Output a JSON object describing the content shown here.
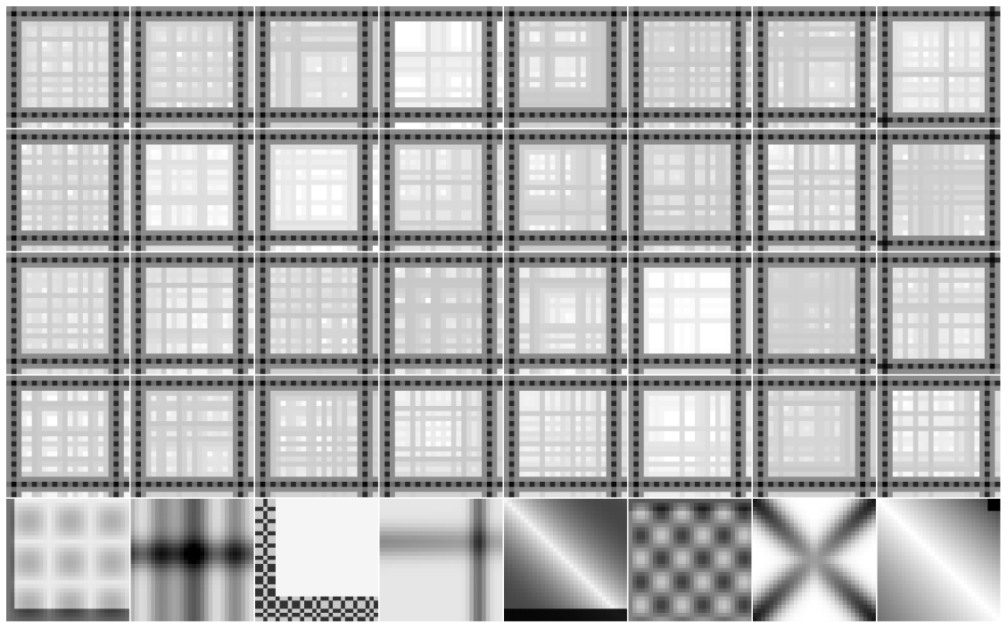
{
  "figure": {
    "grid_rows": 5,
    "grid_cols": 8,
    "background": "#ffffff",
    "colormap": "grayscale"
  },
  "tiles": {
    "row_styles": [
      "lattice",
      "lattice",
      "lattice",
      "lattice",
      "smooth"
    ],
    "faint_tiles": [
      [
        0,
        3
      ],
      [
        1,
        1
      ],
      [
        1,
        2
      ],
      [
        2,
        5
      ],
      [
        3,
        5
      ]
    ],
    "offset_tiles": [
      [
        0,
        7
      ],
      [
        1,
        7
      ],
      [
        2,
        7
      ]
    ],
    "bottom_row_patterns": [
      "checker-dots",
      "dark-cross",
      "corner-lattice",
      "cross-right",
      "diagonal-gradient",
      "plaid-dark",
      "x-shape",
      "soft-diagonal"
    ]
  }
}
